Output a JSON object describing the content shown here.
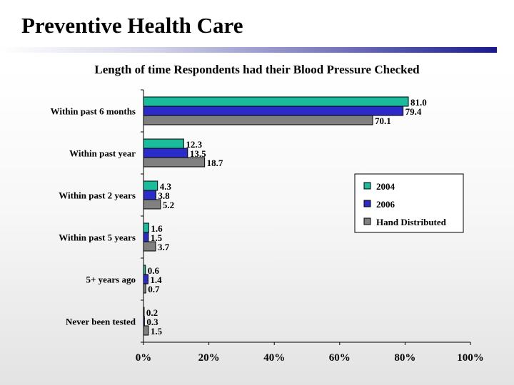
{
  "slide": {
    "title": "Preventive Health Care"
  },
  "colors": {
    "2004": "#1abc9c",
    "2006": "#2b2bc8",
    "Hand Distributed": "#808080",
    "title_rule_end": "#1a1a8c"
  },
  "chart_data": {
    "type": "bar",
    "orientation": "horizontal",
    "title": "Length of time Respondents had their Blood Pressure Checked",
    "categories": [
      "Within past 6 months",
      "Within past year",
      "Within past 2 years",
      "Within past 5 years",
      "5+ years ago",
      "Never been tested"
    ],
    "series": [
      {
        "name": "2004",
        "values": [
          81.0,
          12.3,
          4.3,
          1.6,
          0.6,
          0.2
        ]
      },
      {
        "name": "2006",
        "values": [
          79.4,
          13.5,
          3.8,
          1.5,
          1.4,
          0.3
        ]
      },
      {
        "name": "Hand Distributed",
        "values": [
          70.1,
          18.7,
          5.2,
          3.7,
          0.7,
          1.5
        ]
      }
    ],
    "xlim": [
      0,
      100
    ],
    "x_ticks": [
      "0%",
      "20%",
      "40%",
      "60%",
      "80%",
      "100%"
    ],
    "xlabel": "",
    "ylabel": "",
    "legend_position": "right",
    "grid": false,
    "value_labels": true
  }
}
